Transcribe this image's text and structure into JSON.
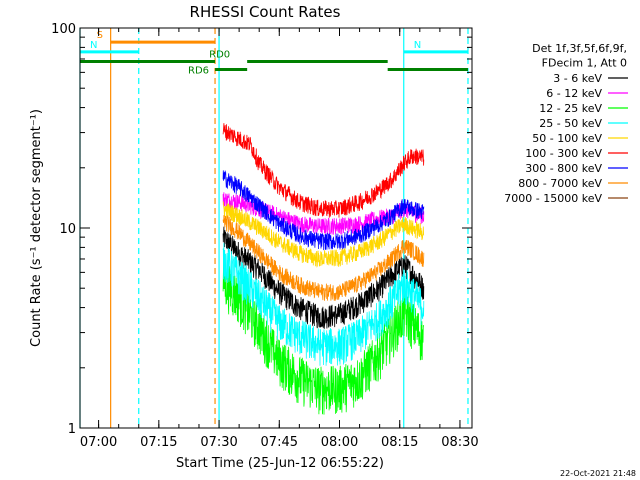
{
  "chart_data": {
    "type": "line",
    "title": "RHESSI Count Rates",
    "xlabel": "Start Time (25-Jun-12 06:55:22)",
    "ylabel": "Count Rate (s⁻¹ detector segment⁻¹)",
    "y_scale": "log",
    "ylim": [
      1,
      100
    ],
    "xlim": [
      "06:55:22",
      "08:33:00"
    ],
    "x_ticks": [
      "07:00",
      "07:15",
      "07:30",
      "07:45",
      "08:00",
      "08:15",
      "08:30"
    ],
    "y_ticks": [
      "1",
      "10",
      "100"
    ],
    "legend_header": [
      "Det 1f,3f,5f,6f,9f,",
      "FDecim 1, Att 0"
    ],
    "legend_position": "right",
    "data_start": "07:31",
    "data_end": "08:21",
    "series": [
      {
        "name": "3 - 6 keV",
        "color": "#000000",
        "values": [
          {
            "t": "07:31",
            "y": 9.0
          },
          {
            "t": "07:35",
            "y": 7.5
          },
          {
            "t": "07:40",
            "y": 6.2
          },
          {
            "t": "07:45",
            "y": 4.8
          },
          {
            "t": "07:50",
            "y": 4.0
          },
          {
            "t": "07:55",
            "y": 3.6
          },
          {
            "t": "08:00",
            "y": 3.7
          },
          {
            "t": "08:05",
            "y": 4.2
          },
          {
            "t": "08:10",
            "y": 5.0
          },
          {
            "t": "08:13",
            "y": 5.8
          },
          {
            "t": "08:16",
            "y": 6.6
          },
          {
            "t": "08:18",
            "y": 6.0
          },
          {
            "t": "08:21",
            "y": 5.0
          }
        ]
      },
      {
        "name": "6 - 12 keV",
        "color": "#ff00ff",
        "values": [
          {
            "t": "07:31",
            "y": 14
          },
          {
            "t": "07:35",
            "y": 13.5
          },
          {
            "t": "07:40",
            "y": 12.5
          },
          {
            "t": "07:45",
            "y": 11.5
          },
          {
            "t": "07:50",
            "y": 10.5
          },
          {
            "t": "07:55",
            "y": 10.2
          },
          {
            "t": "08:00",
            "y": 10.3
          },
          {
            "t": "08:05",
            "y": 10.5
          },
          {
            "t": "08:10",
            "y": 11.2
          },
          {
            "t": "08:13",
            "y": 11.5
          },
          {
            "t": "08:16",
            "y": 12.5
          },
          {
            "t": "08:18",
            "y": 12.0
          },
          {
            "t": "08:21",
            "y": 11.5
          }
        ]
      },
      {
        "name": "12 - 25 keV",
        "color": "#00ff00",
        "values": [
          {
            "t": "07:31",
            "y": 5.5
          },
          {
            "t": "07:35",
            "y": 4.5
          },
          {
            "t": "07:40",
            "y": 3.2
          },
          {
            "t": "07:45",
            "y": 2.2
          },
          {
            "t": "07:50",
            "y": 1.8
          },
          {
            "t": "07:55",
            "y": 1.6
          },
          {
            "t": "08:00",
            "y": 1.6
          },
          {
            "t": "08:05",
            "y": 1.8
          },
          {
            "t": "08:10",
            "y": 2.4
          },
          {
            "t": "08:13",
            "y": 3.0
          },
          {
            "t": "08:16",
            "y": 3.8
          },
          {
            "t": "08:18",
            "y": 3.4
          },
          {
            "t": "08:21",
            "y": 2.8
          }
        ]
      },
      {
        "name": "25 - 50 keV",
        "color": "#00ffff",
        "values": [
          {
            "t": "07:31",
            "y": 7.0
          },
          {
            "t": "07:35",
            "y": 5.8
          },
          {
            "t": "07:40",
            "y": 4.5
          },
          {
            "t": "07:45",
            "y": 3.4
          },
          {
            "t": "07:50",
            "y": 2.9
          },
          {
            "t": "07:55",
            "y": 2.6
          },
          {
            "t": "08:00",
            "y": 2.6
          },
          {
            "t": "08:05",
            "y": 2.9
          },
          {
            "t": "08:10",
            "y": 3.6
          },
          {
            "t": "08:13",
            "y": 4.3
          },
          {
            "t": "08:16",
            "y": 5.3
          },
          {
            "t": "08:18",
            "y": 4.8
          },
          {
            "t": "08:21",
            "y": 4.0
          }
        ]
      },
      {
        "name": "50 - 100 keV",
        "color": "#ffd700",
        "values": [
          {
            "t": "07:31",
            "y": 12.5
          },
          {
            "t": "07:35",
            "y": 11.5
          },
          {
            "t": "07:40",
            "y": 10.0
          },
          {
            "t": "07:45",
            "y": 8.5
          },
          {
            "t": "07:50",
            "y": 7.5
          },
          {
            "t": "07:55",
            "y": 7.0
          },
          {
            "t": "08:00",
            "y": 7.1
          },
          {
            "t": "08:05",
            "y": 7.6
          },
          {
            "t": "08:10",
            "y": 8.6
          },
          {
            "t": "08:13",
            "y": 9.6
          },
          {
            "t": "08:16",
            "y": 10.5
          },
          {
            "t": "08:18",
            "y": 10.0
          },
          {
            "t": "08:21",
            "y": 9.5
          }
        ]
      },
      {
        "name": "100 - 300 keV",
        "color": "#ff0000",
        "values": [
          {
            "t": "07:31",
            "y": 31
          },
          {
            "t": "07:35",
            "y": 28
          },
          {
            "t": "07:38",
            "y": 26
          },
          {
            "t": "07:40",
            "y": 21
          },
          {
            "t": "07:45",
            "y": 16
          },
          {
            "t": "07:50",
            "y": 13.5
          },
          {
            "t": "07:55",
            "y": 12.5
          },
          {
            "t": "08:00",
            "y": 12.5
          },
          {
            "t": "08:05",
            "y": 13.5
          },
          {
            "t": "08:10",
            "y": 15.5
          },
          {
            "t": "08:13",
            "y": 17.5
          },
          {
            "t": "08:16",
            "y": 21
          },
          {
            "t": "08:18",
            "y": 23
          },
          {
            "t": "08:21",
            "y": 22.5
          }
        ]
      },
      {
        "name": "300 - 800 keV",
        "color": "#0000ff",
        "values": [
          {
            "t": "07:31",
            "y": 18
          },
          {
            "t": "07:35",
            "y": 16
          },
          {
            "t": "07:40",
            "y": 13
          },
          {
            "t": "07:45",
            "y": 10.5
          },
          {
            "t": "07:50",
            "y": 9.2
          },
          {
            "t": "07:55",
            "y": 8.6
          },
          {
            "t": "08:00",
            "y": 8.6
          },
          {
            "t": "08:05",
            "y": 9.2
          },
          {
            "t": "08:10",
            "y": 10.5
          },
          {
            "t": "08:13",
            "y": 11.5
          },
          {
            "t": "08:16",
            "y": 13.0
          },
          {
            "t": "08:18",
            "y": 12.5
          },
          {
            "t": "08:21",
            "y": 12.0
          }
        ]
      },
      {
        "name": "800 - 7000 keV",
        "color": "#ff8c00",
        "values": [
          {
            "t": "07:31",
            "y": 11
          },
          {
            "t": "07:35",
            "y": 9.5
          },
          {
            "t": "07:40",
            "y": 7.5
          },
          {
            "t": "07:45",
            "y": 6.0
          },
          {
            "t": "07:50",
            "y": 5.2
          },
          {
            "t": "07:55",
            "y": 4.8
          },
          {
            "t": "08:00",
            "y": 4.8
          },
          {
            "t": "08:05",
            "y": 5.3
          },
          {
            "t": "08:10",
            "y": 6.2
          },
          {
            "t": "08:13",
            "y": 7.0
          },
          {
            "t": "08:16",
            "y": 8.2
          },
          {
            "t": "08:18",
            "y": 7.8
          },
          {
            "t": "08:21",
            "y": 7.0
          }
        ]
      },
      {
        "name": "7000 - 15000 keV",
        "color": "#8b4513",
        "values": []
      }
    ],
    "annotations": {
      "bars": [
        {
          "label": "S",
          "color": "#ff8c00",
          "y": 85,
          "start": "07:03",
          "end": "07:29"
        },
        {
          "label": "N",
          "color": "#00ffff",
          "y": 76,
          "start": "06:55:22",
          "end": "07:10"
        },
        {
          "label": "N",
          "color": "#00ffff",
          "y": 76,
          "start": "08:16",
          "end": "08:32"
        },
        {
          "label": "RD6",
          "color": "#008000",
          "y": 68,
          "start": "06:55:22",
          "end": "07:29"
        },
        {
          "label": "RD0",
          "color": "#008000",
          "y": 68,
          "start": "07:37",
          "end": "08:12"
        },
        {
          "label": "",
          "color": "#008000",
          "y": 62,
          "start": "07:29",
          "end": "07:37"
        },
        {
          "label": "",
          "color": "#008000",
          "y": 62,
          "start": "08:12",
          "end": "08:32"
        }
      ],
      "vlines": [
        {
          "t": "06:55:22",
          "color": "#00ffff",
          "style": "solid"
        },
        {
          "t": "07:03",
          "color": "#ff8c00",
          "style": "solid"
        },
        {
          "t": "07:10",
          "color": "#00ffff",
          "style": "dashed"
        },
        {
          "t": "07:29",
          "color": "#ff8c00",
          "style": "dashed"
        },
        {
          "t": "07:30",
          "color": "#00ffff",
          "style": "solid"
        },
        {
          "t": "08:16",
          "color": "#00ffff",
          "style": "solid"
        },
        {
          "t": "08:32",
          "color": "#00ffff",
          "style": "dashed"
        }
      ]
    },
    "timestamp": "22-Oct-2021 21:48"
  }
}
